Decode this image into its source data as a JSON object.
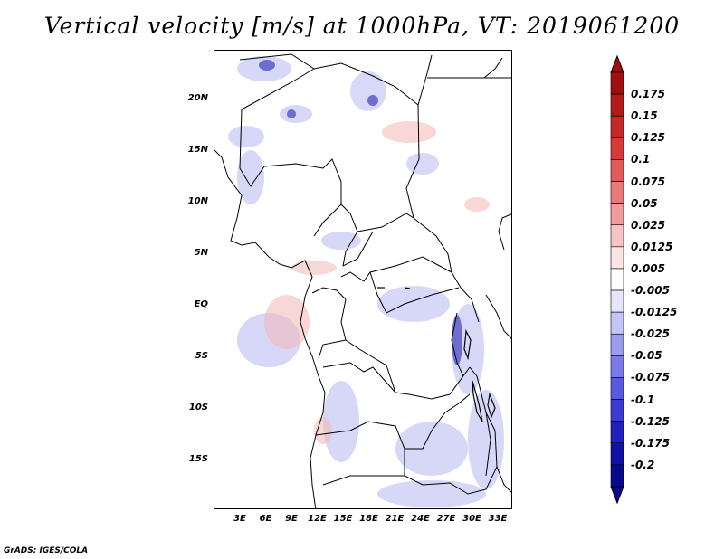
{
  "title": "Vertical velocity [m/s] at 1000hPa, VT: 2019061200",
  "credit": "GrADS: IGES/COLA",
  "map": {
    "lat_labels": [
      "20N",
      "15N",
      "10N",
      "5N",
      "EQ",
      "5S",
      "10S",
      "15S"
    ],
    "lat_values": [
      20,
      15,
      10,
      5,
      0,
      -5,
      -10,
      -15
    ],
    "lon_labels": [
      "3E",
      "6E",
      "9E",
      "12E",
      "15E",
      "18E",
      "21E",
      "24E",
      "27E",
      "30E",
      "33E"
    ],
    "lon_values": [
      3,
      6,
      9,
      12,
      15,
      18,
      21,
      24,
      27,
      30,
      33
    ]
  },
  "colorbar": {
    "labels": [
      "0.175",
      "0.15",
      "0.125",
      "0.1",
      "0.075",
      "0.05",
      "0.025",
      "0.0125",
      "0.005",
      "-0.005",
      "-0.0125",
      "-0.025",
      "-0.05",
      "-0.075",
      "-0.1",
      "-0.125",
      "-0.175",
      "-0.2"
    ],
    "colors": [
      "#a10f0f",
      "#b41919",
      "#c62828",
      "#d83a3a",
      "#e35a5a",
      "#e97a7a",
      "#f09c9c",
      "#f7c4c4",
      "#fbe4e4",
      "#ffffff",
      "#e4e4fb",
      "#c4c4f7",
      "#9c9cef",
      "#7a7ae8",
      "#5a5ae0",
      "#3a3ad4",
      "#2020c0",
      "#1111a8",
      "#08088f"
    ],
    "arrow_top": "#a10f0f",
    "arrow_bottom": "#08088f"
  }
}
